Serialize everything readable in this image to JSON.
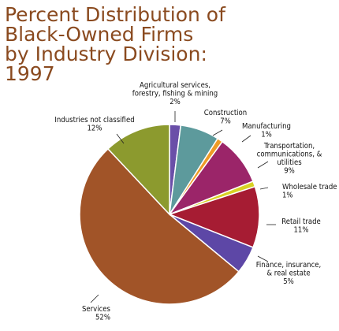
{
  "chart_data": {
    "type": "pie",
    "title_lines": [
      "Percent Distribution of",
      "Black-Owned Firms",
      "by Industry Division:",
      "1997"
    ],
    "slices": [
      {
        "label_lines": [
          "Agricultural services,",
          "forestry, fishing & mining"
        ],
        "value_label": "2%",
        "value": 2,
        "color": "#6a4fa8"
      },
      {
        "label_lines": [
          "Construction"
        ],
        "value_label": "7%",
        "value": 7,
        "color": "#5d9a9c"
      },
      {
        "label_lines": [
          "Manufacturing"
        ],
        "value_label": "1%",
        "value": 1,
        "color": "#ee9b26"
      },
      {
        "label_lines": [
          "Transportation,",
          "communications, &",
          "utilities"
        ],
        "value_label": "9%",
        "value": 9,
        "color": "#9b2569"
      },
      {
        "label_lines": [
          "Wholesale trade"
        ],
        "value_label": "1%",
        "value": 1,
        "color": "#d8d224"
      },
      {
        "label_lines": [
          "Retail trade"
        ],
        "value_label": "11%",
        "value": 11,
        "color": "#a61c33"
      },
      {
        "label_lines": [
          "Finance, insurance,",
          "& real estate"
        ],
        "value_label": "5%",
        "value": 5,
        "color": "#5d47a6"
      },
      {
        "label_lines": [
          "Services"
        ],
        "value_label": "52%",
        "value": 52,
        "color": "#a15428"
      },
      {
        "label_lines": [
          "Industries not classified"
        ],
        "value_label": "12%",
        "value": 12,
        "color": "#8c9a2e"
      }
    ]
  }
}
